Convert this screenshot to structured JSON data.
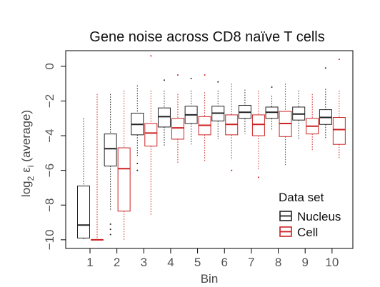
{
  "chart_data": {
    "type": "box",
    "title": "Gene noise across CD8 naïve T cells",
    "xlabel": "Bin",
    "ylabel_parts": {
      "pre": "log",
      "sub2": "2",
      "eps": "ε",
      "subi": "i",
      "post": " (average)"
    },
    "categories": [
      "1",
      "2",
      "3",
      "4",
      "5",
      "6",
      "7",
      "8",
      "9",
      "10"
    ],
    "yticks": [
      0,
      -2,
      -4,
      -6,
      -8,
      -10
    ],
    "ylim": [
      -10.5,
      0.9
    ],
    "legend": {
      "title": "Data set",
      "position": "bottom-right"
    },
    "series": [
      {
        "name": "Nucleus",
        "color": "#222222",
        "boxes": [
          {
            "whisker_low": -10.0,
            "q1": -9.9,
            "median": -9.15,
            "q3": -6.9,
            "whisker_high": -3.0,
            "outliers": []
          },
          {
            "whisker_low": -8.3,
            "q1": -5.75,
            "median": -4.75,
            "q3": -3.9,
            "whisker_high": -1.6,
            "outliers": [
              -9.1,
              -9.4,
              -9.7
            ]
          },
          {
            "whisker_low": -5.2,
            "q1": -3.95,
            "median": -3.35,
            "q3": -2.7,
            "whisker_high": -1.1,
            "outliers": [
              -5.6,
              -6.0
            ]
          },
          {
            "whisker_low": -4.6,
            "q1": -3.5,
            "median": -2.9,
            "q3": -2.4,
            "whisker_high": -1.4,
            "outliers": [
              -0.8
            ]
          },
          {
            "whisker_low": -4.5,
            "q1": -3.3,
            "median": -2.8,
            "q3": -2.3,
            "whisker_high": -1.4,
            "outliers": [
              -0.7
            ]
          },
          {
            "whisker_low": -4.2,
            "q1": -3.15,
            "median": -2.7,
            "q3": -2.3,
            "whisker_high": -1.4,
            "outliers": [
              -0.9
            ]
          },
          {
            "whisker_low": -3.9,
            "q1": -3.0,
            "median": -2.65,
            "q3": -2.25,
            "whisker_high": -1.35,
            "outliers": []
          },
          {
            "whisker_low": -3.7,
            "q1": -3.0,
            "median": -2.65,
            "q3": -2.35,
            "whisker_high": -1.7,
            "outliers": [
              -1.2
            ]
          },
          {
            "whisker_low": -4.2,
            "q1": -3.1,
            "median": -2.75,
            "q3": -2.35,
            "whisker_high": -1.4,
            "outliers": []
          },
          {
            "whisker_low": -4.2,
            "q1": -3.35,
            "median": -2.95,
            "q3": -2.5,
            "whisker_high": -1.3,
            "outliers": [
              -0.1
            ]
          }
        ]
      },
      {
        "name": "Cell",
        "color": "#cc2222",
        "boxes": [
          {
            "whisker_low": -10.0,
            "q1": -10.0,
            "median": -10.0,
            "q3": -10.0,
            "whisker_high": -1.6,
            "outliers": []
          },
          {
            "whisker_low": -10.0,
            "q1": -8.35,
            "median": -5.9,
            "q3": -4.7,
            "whisker_high": -1.4,
            "outliers": []
          },
          {
            "whisker_low": -8.6,
            "q1": -4.6,
            "median": -3.85,
            "q3": -3.3,
            "whisker_high": -1.4,
            "outliers": [
              0.6
            ]
          },
          {
            "whisker_low": -5.6,
            "q1": -4.2,
            "median": -3.55,
            "q3": -3.0,
            "whisker_high": -1.6,
            "outliers": [
              -0.5
            ]
          },
          {
            "whisker_low": -5.5,
            "q1": -3.95,
            "median": -3.4,
            "q3": -2.9,
            "whisker_high": -1.5,
            "outliers": [
              -0.5
            ]
          },
          {
            "whisker_low": -5.4,
            "q1": -3.95,
            "median": -3.35,
            "q3": -2.8,
            "whisker_high": -1.0,
            "outliers": [
              -6.0
            ]
          },
          {
            "whisker_low": -6.0,
            "q1": -4.0,
            "median": -3.35,
            "q3": -2.8,
            "whisker_high": -1.4,
            "outliers": [
              -6.4
            ]
          },
          {
            "whisker_low": -5.7,
            "q1": -4.05,
            "median": -3.3,
            "q3": -2.6,
            "whisker_high": -1.0,
            "outliers": []
          },
          {
            "whisker_low": -4.9,
            "q1": -3.9,
            "median": -3.45,
            "q3": -3.0,
            "whisker_high": -1.6,
            "outliers": []
          },
          {
            "whisker_low": -5.3,
            "q1": -4.5,
            "median": -3.65,
            "q3": -2.95,
            "whisker_high": -1.4,
            "outliers": [
              0.4
            ]
          }
        ]
      }
    ]
  }
}
